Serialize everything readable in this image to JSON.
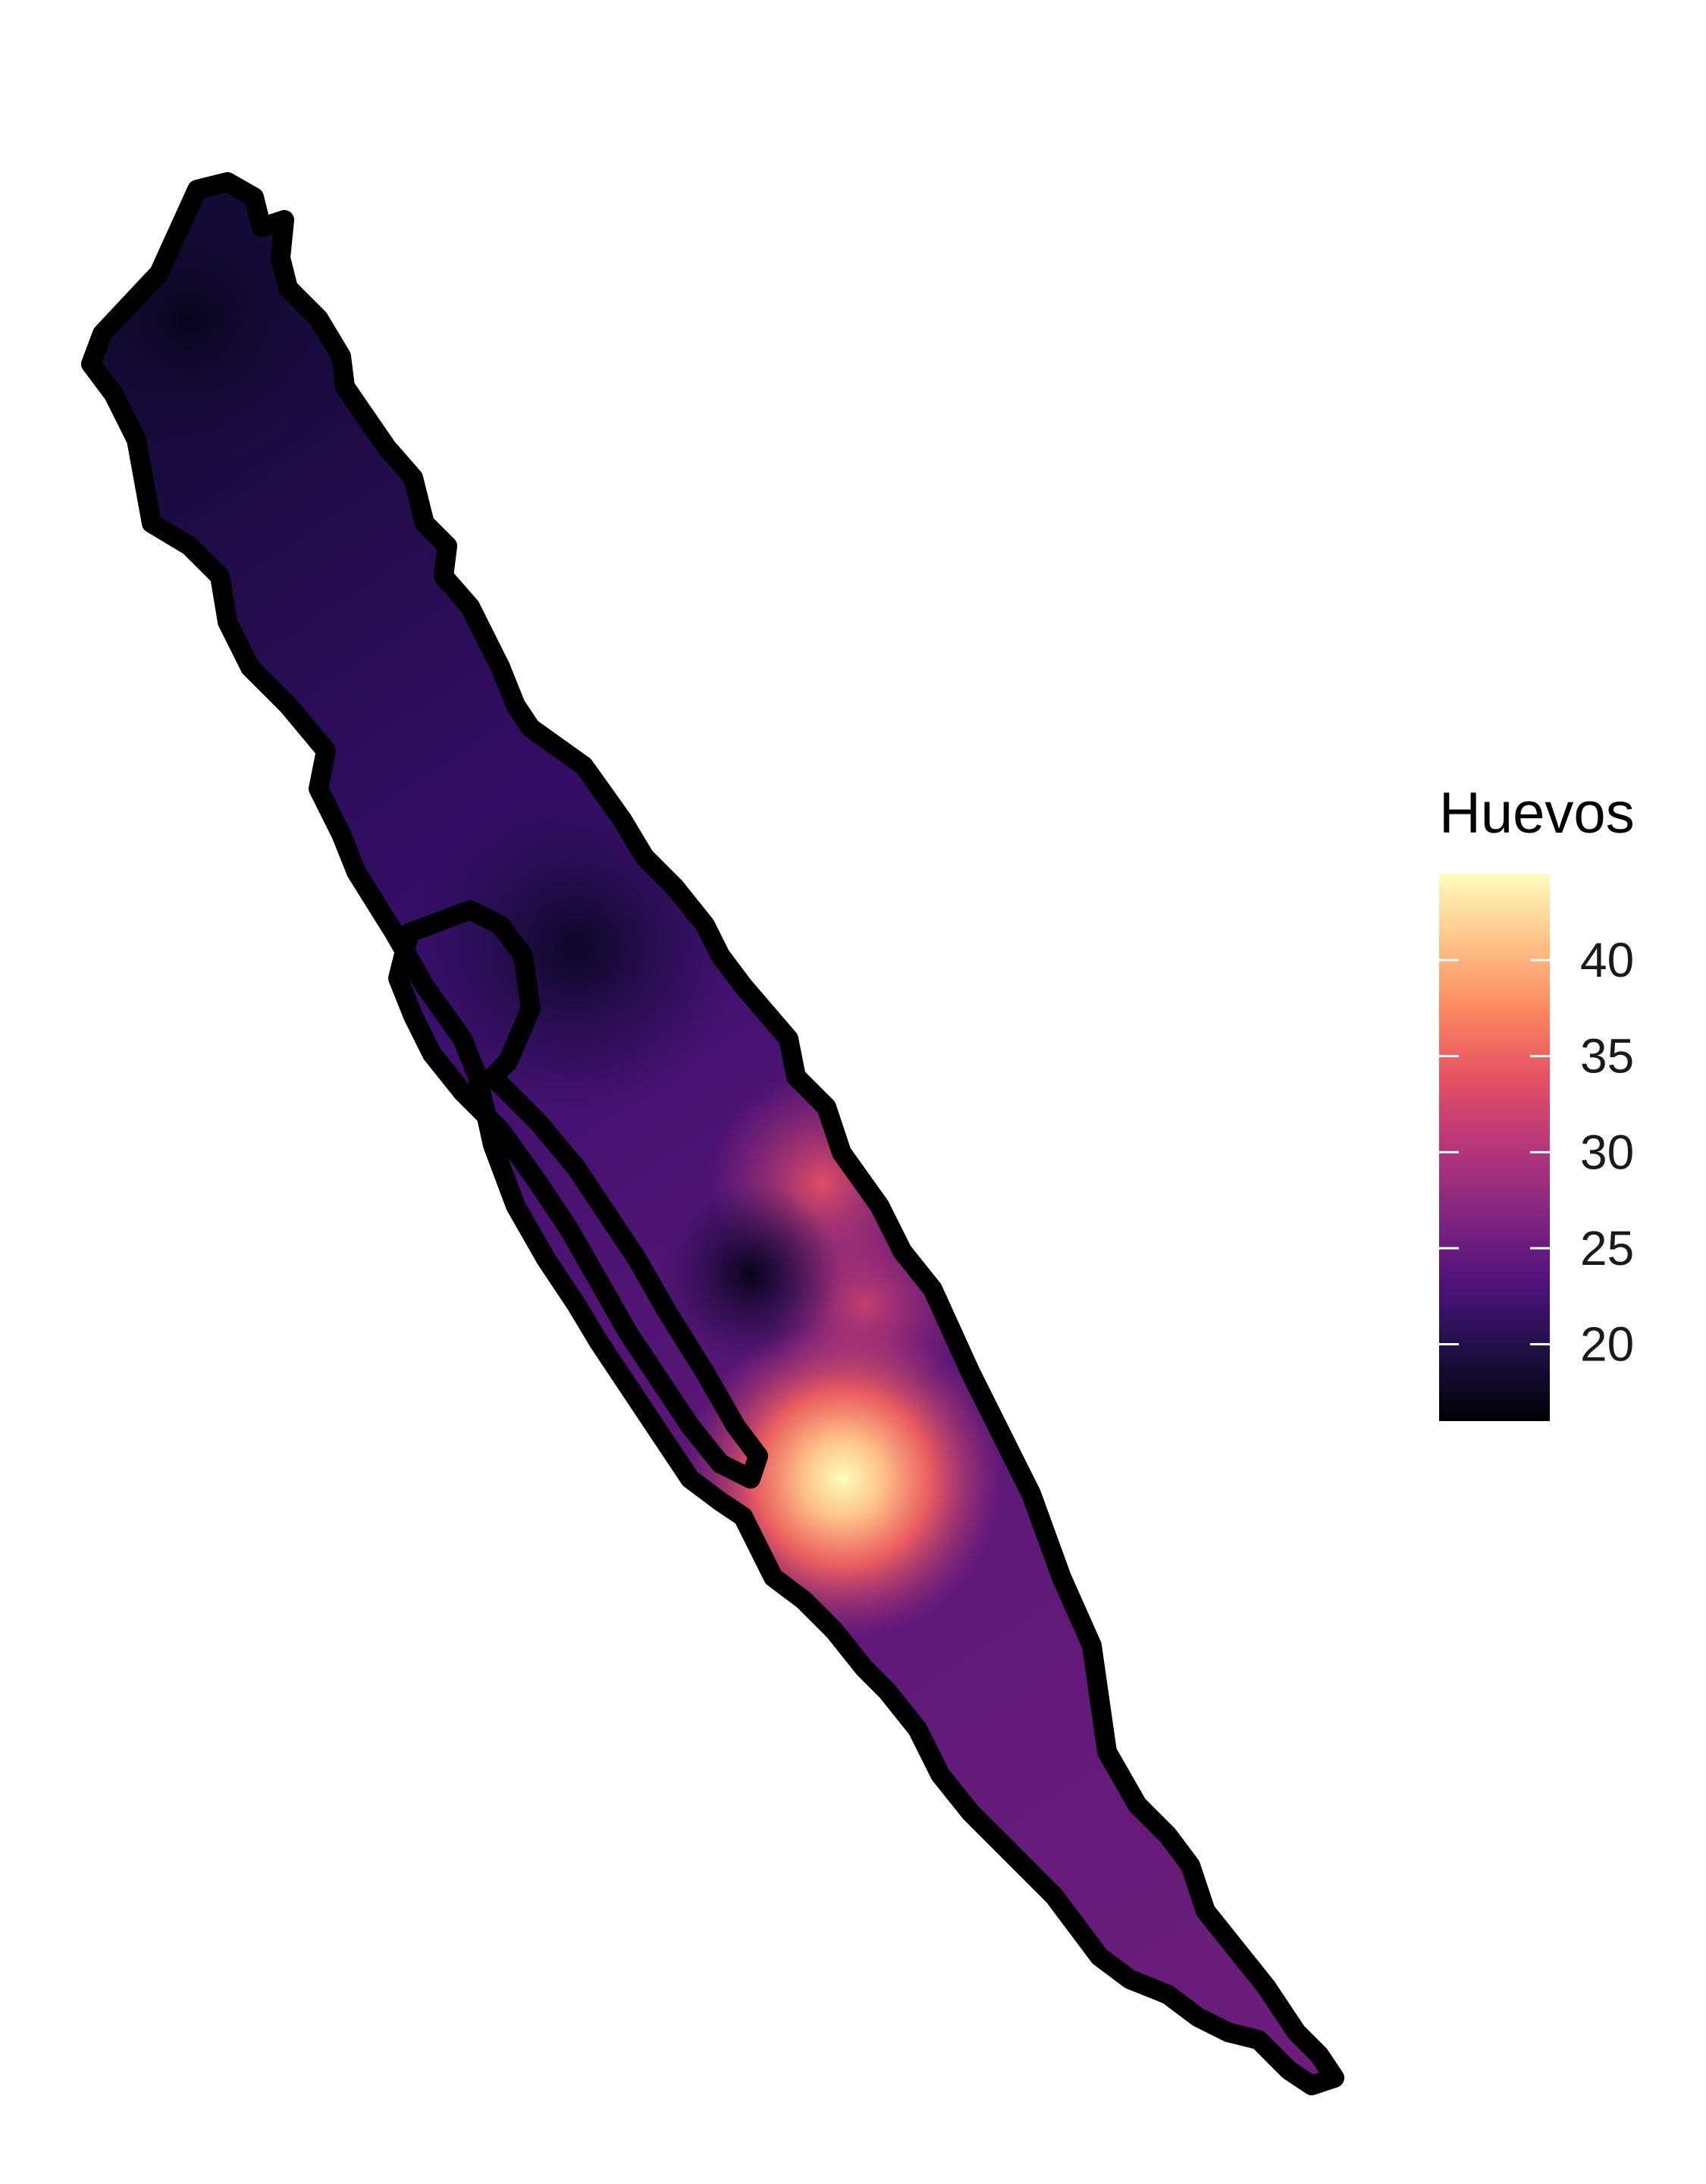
{
  "legend": {
    "title": "Huevos",
    "min": 16,
    "max": 44.5,
    "ticks": [
      {
        "value": 20,
        "label": "20"
      },
      {
        "value": 25,
        "label": "25"
      },
      {
        "value": 30,
        "label": "30"
      },
      {
        "value": 35,
        "label": "35"
      },
      {
        "value": 40,
        "label": "40"
      }
    ],
    "colors": [
      "#000004",
      "#1c1044",
      "#4f127b",
      "#812581",
      "#b5367a",
      "#e55064",
      "#fb8761",
      "#fec287",
      "#fcfdbf"
    ]
  },
  "chart_data": {
    "type": "heatmap",
    "value_name": "Huevos",
    "value_range": [
      16,
      44.5
    ],
    "peak_value": 44,
    "min_value": 16
  }
}
